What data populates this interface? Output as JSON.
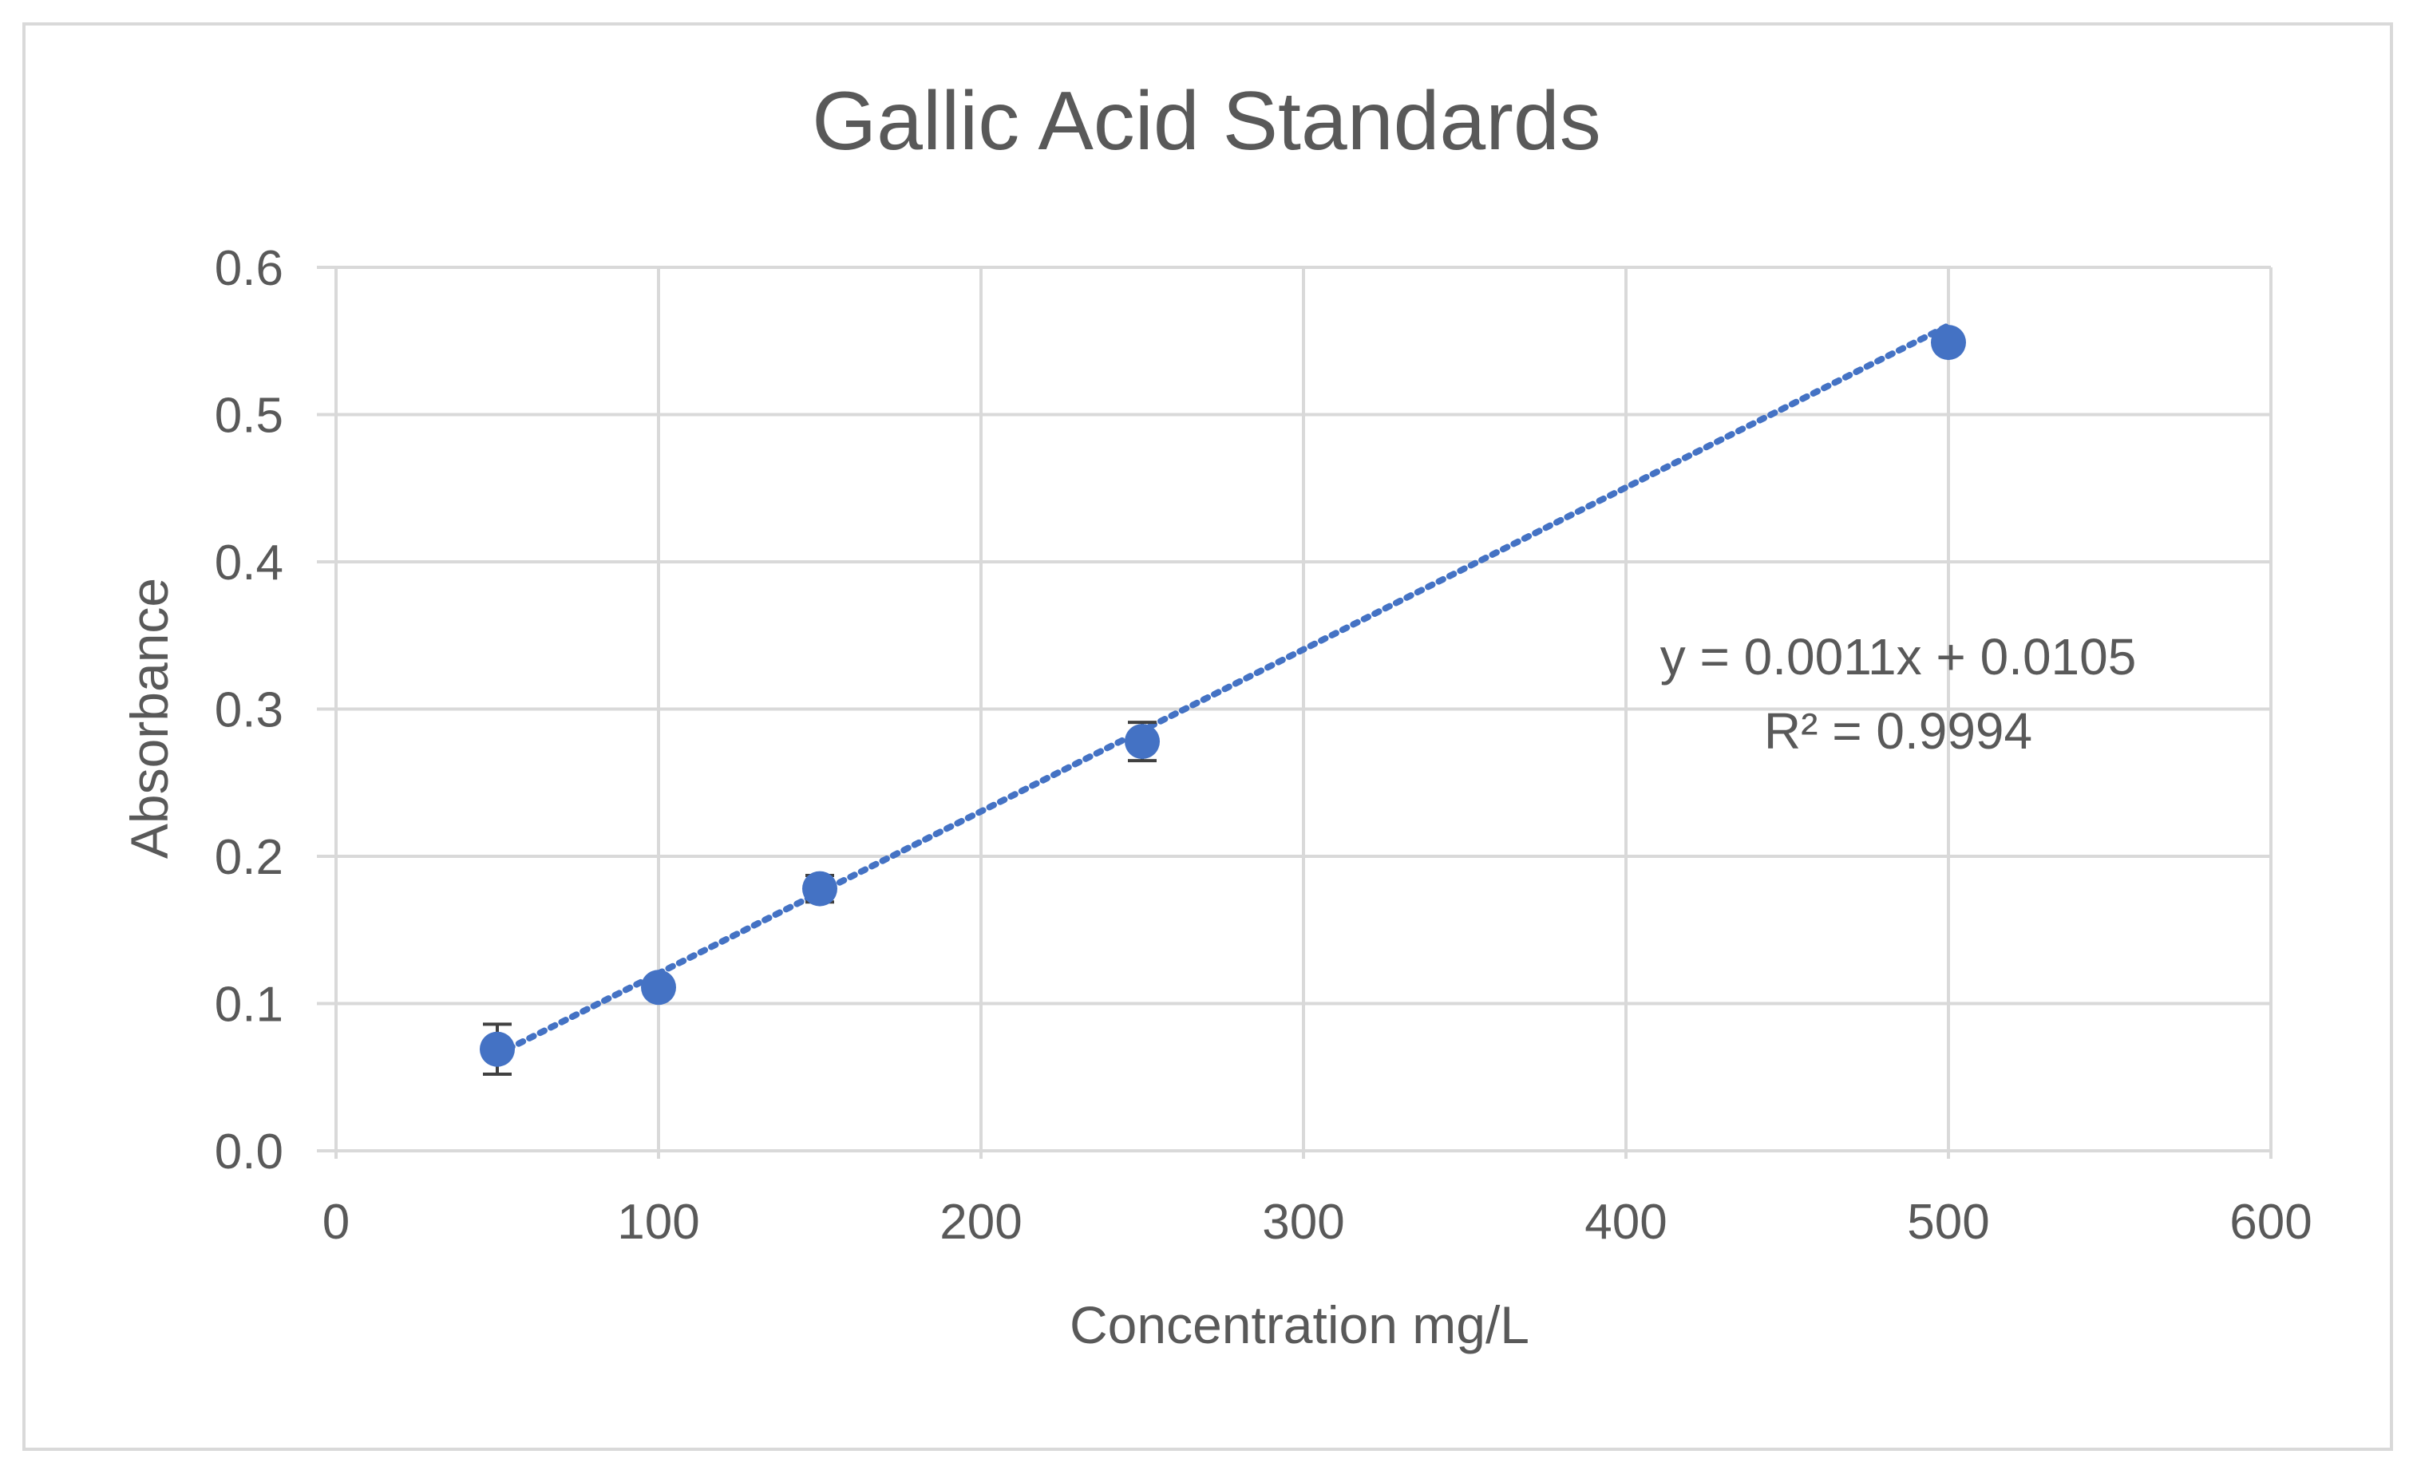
{
  "chart_data": {
    "type": "scatter",
    "title": "Gallic Acid Standards",
    "xlabel": "Concentration mg/L",
    "ylabel": "Absorbance",
    "xlim": [
      0,
      600
    ],
    "ylim": [
      0,
      0.6
    ],
    "x_ticks": [
      0,
      100,
      200,
      300,
      400,
      500,
      600
    ],
    "y_ticks": [
      "0.0",
      "0.1",
      "0.2",
      "0.3",
      "0.4",
      "0.5",
      "0.6"
    ],
    "grid": true,
    "series": [
      {
        "marker_color": "#4472c4",
        "points": [
          {
            "x": 50,
            "y": 0.069,
            "err": 0.017
          },
          {
            "x": 100,
            "y": 0.111,
            "err": 0.004
          },
          {
            "x": 150,
            "y": 0.178,
            "err": 0.009
          },
          {
            "x": 250,
            "y": 0.278,
            "err": 0.013
          },
          {
            "x": 500,
            "y": 0.549,
            "err": 0.004
          }
        ]
      }
    ],
    "trendline": {
      "type": "linear",
      "slope": 0.0011,
      "intercept": 0.0105,
      "x_range": [
        50,
        500
      ],
      "style": "dotted",
      "color": "#4472c4",
      "equation_label": "y = 0.0011x + 0.0105",
      "r_squared_label": "R² = 0.9994"
    }
  }
}
